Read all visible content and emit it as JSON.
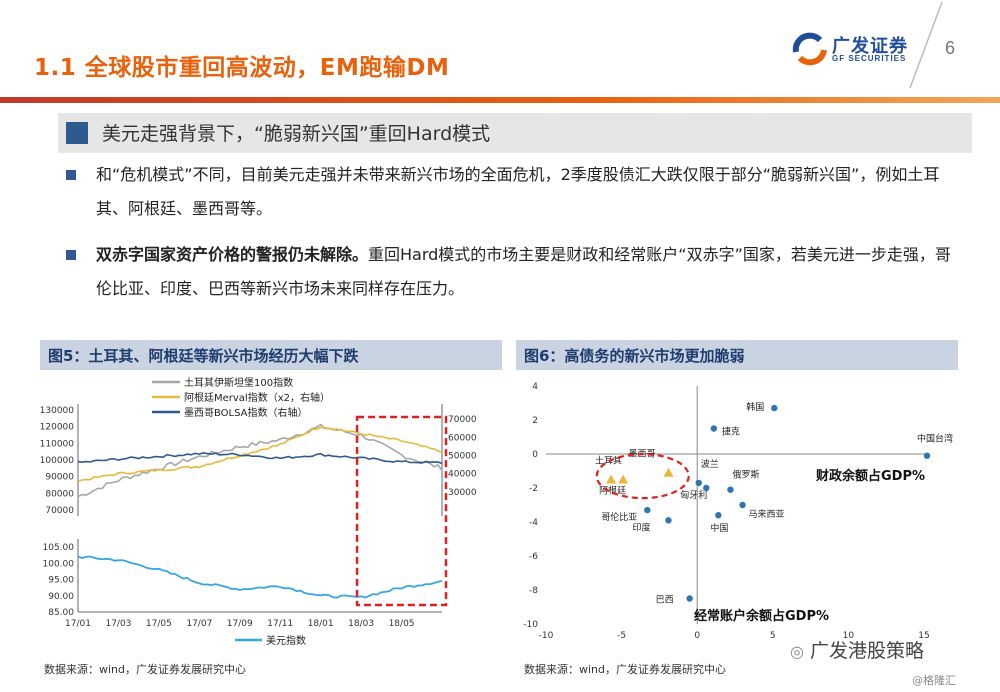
{
  "header": {
    "title": "1.1 全球股市重回高波动，EM跑输DM",
    "page_number": "6",
    "logo_cn": "广发证券",
    "logo_en": "GF SECURITIES"
  },
  "section": {
    "heading": "美元走强背景下，“脆弱新兴国”重回Hard模式"
  },
  "bullets": [
    {
      "lead": "",
      "text": "和“危机模式”不同，目前美元走强并未带来新兴市场的全面危机，2季度股债汇大跌仅限于部分“脆弱新兴国”，例如土耳其、阿根廷、墨西哥等。"
    },
    {
      "lead": "双赤字国家资产价格的警报仍未解除。",
      "text": "重回Hard模式的市场主要是财政和经常账户“双赤字”国家，若美元进一步走强，哥伦比亚、印度、巴西等新兴市场未来同样存在压力。"
    }
  ],
  "fig5": {
    "title": "图5：土耳其、阿根廷等新兴市场经历大幅下跌",
    "source": "数据来源：wind，广发证券发展研究中心"
  },
  "fig6": {
    "title": "图6：高债务的新兴市场更加脆弱",
    "source": "数据来源：wind，广发证券发展研究中心"
  },
  "watermark": {
    "main": "广发港股策略",
    "sub": "@格隆汇"
  },
  "chart_data": [
    {
      "type": "line",
      "panel": "top",
      "series": [
        {
          "name": "土耳其伊斯坦堡100指数",
          "color": "#a6a6a6",
          "axis": "left",
          "x": [
            "17/01",
            "17/03",
            "17/05",
            "17/07",
            "17/09",
            "17/11",
            "18/01",
            "18/03",
            "18/05",
            "18/07"
          ],
          "values": [
            78000,
            88000,
            95000,
            102000,
            108000,
            112000,
            120000,
            115000,
            103000,
            95000
          ]
        },
        {
          "name": "阿根廷Merval指数（x2，右轴）",
          "color": "#e8b83a",
          "axis": "right",
          "x": [
            "17/01",
            "17/03",
            "17/05",
            "17/07",
            "17/09",
            "17/11",
            "18/01",
            "18/03",
            "18/05",
            "18/07"
          ],
          "values": [
            36000,
            40000,
            42000,
            44000,
            50000,
            56000,
            66000,
            62000,
            58000,
            52000
          ]
        },
        {
          "name": "墨西哥BOLSA指数（右轴）",
          "color": "#2e5b8f",
          "axis": "right",
          "x": [
            "17/01",
            "17/03",
            "17/05",
            "17/07",
            "17/09",
            "17/11",
            "18/01",
            "18/03",
            "18/05",
            "18/07"
          ],
          "values": [
            46000,
            48000,
            49500,
            51000,
            50500,
            48500,
            50500,
            48500,
            46500,
            46000
          ]
        }
      ],
      "ylim_left": [
        70000,
        130000
      ],
      "yticks_left": [
        "70000",
        "80000",
        "90000",
        "100000",
        "110000",
        "120000",
        "130000"
      ],
      "ylim_right": [
        20000,
        75000
      ],
      "yticks_right": [
        "30000",
        "40000",
        "50000",
        "60000",
        "70000"
      ]
    },
    {
      "type": "line",
      "panel": "bottom",
      "series": [
        {
          "name": "美元指数",
          "color": "#35a7e0",
          "x": [
            "17/01",
            "17/03",
            "17/05",
            "17/07",
            "17/09",
            "17/11",
            "18/01",
            "18/03",
            "18/05",
            "18/07"
          ],
          "values": [
            102,
            101,
            98,
            94,
            92,
            93,
            90,
            89.5,
            92.5,
            94.5
          ]
        }
      ],
      "ylim": [
        85,
        105
      ],
      "yticks": [
        "85.00",
        "90.00",
        "95.00",
        "100.00",
        "105.00"
      ],
      "xticks": [
        "17/01",
        "17/03",
        "17/05",
        "17/07",
        "17/09",
        "17/11",
        "18/01",
        "18/03",
        "18/05"
      ]
    },
    {
      "type": "scatter",
      "xlabel": "经常账户余额占GDP%",
      "ylabel": "财政余额占GDP%",
      "xlim": [
        -10,
        15
      ],
      "ylim": [
        -10,
        4
      ],
      "xticks": [
        "-10",
        "-5",
        "0",
        "5",
        "10",
        "15"
      ],
      "yticks": [
        "-10",
        "-8",
        "-6",
        "-4",
        "-2",
        "0",
        "2",
        "4"
      ],
      "points": [
        {
          "label": "韩国",
          "x": 5.1,
          "y": 2.7,
          "marker": "circle"
        },
        {
          "label": "捷克",
          "x": 1.1,
          "y": 1.5,
          "marker": "circle"
        },
        {
          "label": "中国台湾",
          "x": 15.2,
          "y": -0.1,
          "marker": "circle"
        },
        {
          "label": "波兰",
          "x": 0.1,
          "y": -1.7,
          "marker": "circle"
        },
        {
          "label": "俄罗斯",
          "x": 2.2,
          "y": -2.1,
          "marker": "circle"
        },
        {
          "label": "匈牙利",
          "x": 0.6,
          "y": -2.0,
          "marker": "circle"
        },
        {
          "label": "马来西亚",
          "x": 3.0,
          "y": -3.0,
          "marker": "circle"
        },
        {
          "label": "中国",
          "x": 1.4,
          "y": -3.6,
          "marker": "circle"
        },
        {
          "label": "哥伦比亚",
          "x": -3.3,
          "y": -3.3,
          "marker": "circle"
        },
        {
          "label": "印度",
          "x": -1.9,
          "y": -3.9,
          "marker": "circle"
        },
        {
          "label": "巴西",
          "x": -0.5,
          "y": -8.5,
          "marker": "circle"
        },
        {
          "label": "土耳其",
          "x": -5.7,
          "y": -1.5,
          "marker": "triangle"
        },
        {
          "label": "墨西哥",
          "x": -1.9,
          "y": -1.1,
          "marker": "triangle"
        },
        {
          "label": "阿根廷",
          "x": -4.9,
          "y": -1.5,
          "marker": "triangle"
        }
      ]
    }
  ]
}
